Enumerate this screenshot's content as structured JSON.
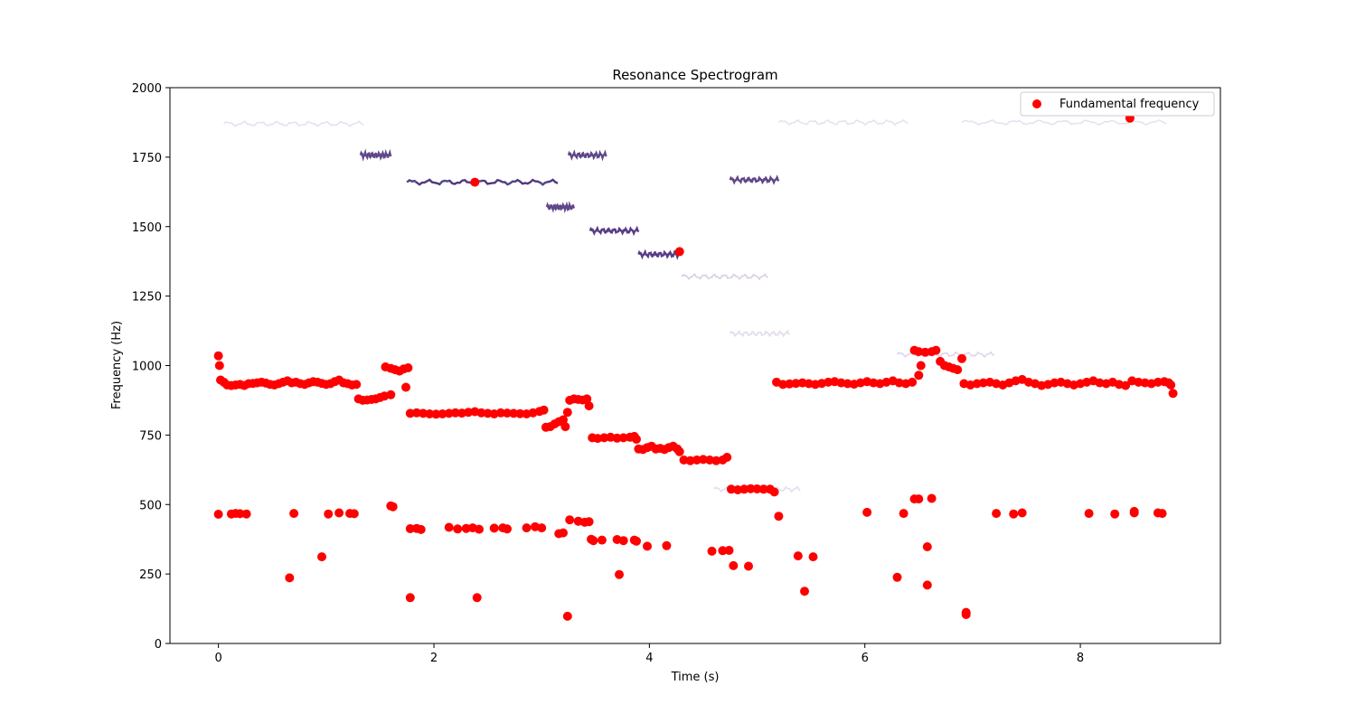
{
  "chart_data": {
    "type": "scatter",
    "title": "Resonance Spectrogram",
    "xlabel": "Time (s)",
    "ylabel": "Frequency (Hz)",
    "xlim": [
      -0.45,
      9.3
    ],
    "ylim": [
      0,
      2000
    ],
    "xticks": [
      0,
      2,
      4,
      6,
      8
    ],
    "yticks": [
      0,
      250,
      500,
      750,
      1000,
      1250,
      1500,
      1750,
      2000
    ],
    "grid": false,
    "legend": {
      "position": "top-right",
      "entries": [
        "Fundamental frequency"
      ]
    },
    "colors": {
      "points": "#ff0000",
      "spectrogram_dark": "#4b2f7a",
      "spectrogram_light": "#c9b8dd",
      "spectrogram_teal": "#2a8a8c"
    },
    "spectrogram_bands": [
      {
        "t0": 0.05,
        "t1": 1.35,
        "f": 1870,
        "intensity": 0.25
      },
      {
        "t0": 1.32,
        "t1": 1.6,
        "f": 1757,
        "intensity": 0.85
      },
      {
        "t0": 1.75,
        "t1": 3.15,
        "f": 1660,
        "intensity": 0.95
      },
      {
        "t0": 3.05,
        "t1": 3.3,
        "f": 1570,
        "intensity": 0.85
      },
      {
        "t0": 3.25,
        "t1": 3.6,
        "f": 1757,
        "intensity": 0.85
      },
      {
        "t0": 3.45,
        "t1": 3.9,
        "f": 1485,
        "intensity": 0.9
      },
      {
        "t0": 3.9,
        "t1": 4.3,
        "f": 1400,
        "intensity": 0.9
      },
      {
        "t0": 4.3,
        "t1": 5.1,
        "f": 1320,
        "intensity": 0.6
      },
      {
        "t0": 4.75,
        "t1": 5.2,
        "f": 1668,
        "intensity": 0.85
      },
      {
        "t0": 4.75,
        "t1": 5.3,
        "f": 1115,
        "intensity": 0.35
      },
      {
        "t0": 5.2,
        "t1": 6.4,
        "f": 1875,
        "intensity": 0.25
      },
      {
        "t0": 6.9,
        "t1": 8.8,
        "f": 1875,
        "intensity": 0.25
      },
      {
        "t0": 0.05,
        "t1": 1.3,
        "f": 935,
        "intensity": 0.3
      },
      {
        "t0": 6.3,
        "t1": 7.2,
        "f": 1040,
        "intensity": 0.45
      },
      {
        "t0": 4.6,
        "t1": 5.4,
        "f": 555,
        "intensity": 0.3
      }
    ],
    "series": [
      {
        "name": "Fundamental frequency",
        "points": [
          [
            0.0,
            1035
          ],
          [
            0.01,
            1000
          ],
          [
            0.02,
            948
          ],
          [
            0.05,
            940
          ],
          [
            0.08,
            930
          ],
          [
            0.12,
            928
          ],
          [
            0.16,
            930
          ],
          [
            0.2,
            932
          ],
          [
            0.24,
            928
          ],
          [
            0.28,
            935
          ],
          [
            0.32,
            936
          ],
          [
            0.36,
            938
          ],
          [
            0.4,
            940
          ],
          [
            0.44,
            937
          ],
          [
            0.48,
            932
          ],
          [
            0.52,
            930
          ],
          [
            0.56,
            935
          ],
          [
            0.6,
            940
          ],
          [
            0.64,
            945
          ],
          [
            0.68,
            938
          ],
          [
            0.72,
            940
          ],
          [
            0.76,
            935
          ],
          [
            0.8,
            932
          ],
          [
            0.84,
            938
          ],
          [
            0.88,
            942
          ],
          [
            0.92,
            940
          ],
          [
            0.96,
            936
          ],
          [
            1.0,
            932
          ],
          [
            1.04,
            935
          ],
          [
            1.08,
            942
          ],
          [
            1.12,
            948
          ],
          [
            1.16,
            938
          ],
          [
            1.2,
            935
          ],
          [
            1.24,
            930
          ],
          [
            1.28,
            932
          ],
          [
            1.3,
            880
          ],
          [
            1.34,
            875
          ],
          [
            1.38,
            876
          ],
          [
            1.42,
            878
          ],
          [
            1.46,
            880
          ],
          [
            1.5,
            885
          ],
          [
            1.54,
            890
          ],
          [
            1.6,
            895
          ],
          [
            1.55,
            995
          ],
          [
            1.6,
            990
          ],
          [
            1.64,
            985
          ],
          [
            1.68,
            980
          ],
          [
            1.72,
            988
          ],
          [
            1.76,
            992
          ],
          [
            1.74,
            922
          ],
          [
            1.78,
            828
          ],
          [
            1.84,
            830
          ],
          [
            1.9,
            828
          ],
          [
            1.96,
            826
          ],
          [
            2.02,
            825
          ],
          [
            2.08,
            826
          ],
          [
            2.14,
            828
          ],
          [
            2.2,
            830
          ],
          [
            2.26,
            829
          ],
          [
            2.32,
            832
          ],
          [
            2.38,
            834
          ],
          [
            2.44,
            830
          ],
          [
            2.5,
            828
          ],
          [
            2.56,
            826
          ],
          [
            2.62,
            830
          ],
          [
            2.68,
            829
          ],
          [
            2.74,
            828
          ],
          [
            2.8,
            827
          ],
          [
            2.86,
            826
          ],
          [
            2.92,
            830
          ],
          [
            2.98,
            835
          ],
          [
            3.02,
            840
          ],
          [
            3.04,
            778
          ],
          [
            3.08,
            780
          ],
          [
            3.12,
            790
          ],
          [
            3.16,
            798
          ],
          [
            3.2,
            805
          ],
          [
            3.22,
            780
          ],
          [
            3.24,
            832
          ],
          [
            3.26,
            875
          ],
          [
            3.3,
            880
          ],
          [
            3.34,
            878
          ],
          [
            3.38,
            876
          ],
          [
            3.42,
            880
          ],
          [
            3.44,
            855
          ],
          [
            3.47,
            740
          ],
          [
            3.52,
            738
          ],
          [
            3.58,
            740
          ],
          [
            3.64,
            742
          ],
          [
            3.7,
            739
          ],
          [
            3.76,
            740
          ],
          [
            3.82,
            742
          ],
          [
            3.86,
            745
          ],
          [
            3.88,
            735
          ],
          [
            3.9,
            700
          ],
          [
            3.94,
            698
          ],
          [
            3.98,
            705
          ],
          [
            4.02,
            710
          ],
          [
            4.06,
            700
          ],
          [
            4.1,
            702
          ],
          [
            4.14,
            698
          ],
          [
            4.18,
            705
          ],
          [
            4.22,
            710
          ],
          [
            4.26,
            700
          ],
          [
            4.28,
            690
          ],
          [
            4.32,
            660
          ],
          [
            4.38,
            658
          ],
          [
            4.44,
            660
          ],
          [
            4.5,
            662
          ],
          [
            4.56,
            660
          ],
          [
            4.62,
            658
          ],
          [
            4.68,
            660
          ],
          [
            4.72,
            670
          ],
          [
            4.76,
            555
          ],
          [
            4.82,
            553
          ],
          [
            4.88,
            555
          ],
          [
            4.94,
            557
          ],
          [
            5.0,
            556
          ],
          [
            5.06,
            555
          ],
          [
            5.12,
            555
          ],
          [
            5.16,
            545
          ],
          [
            5.18,
            940
          ],
          [
            5.24,
            932
          ],
          [
            5.3,
            934
          ],
          [
            5.36,
            936
          ],
          [
            5.42,
            938
          ],
          [
            5.48,
            935
          ],
          [
            5.54,
            932
          ],
          [
            5.6,
            936
          ],
          [
            5.66,
            940
          ],
          [
            5.72,
            942
          ],
          [
            5.78,
            938
          ],
          [
            5.84,
            935
          ],
          [
            5.9,
            933
          ],
          [
            5.96,
            938
          ],
          [
            6.02,
            942
          ],
          [
            6.08,
            938
          ],
          [
            6.14,
            935
          ],
          [
            6.2,
            940
          ],
          [
            6.26,
            945
          ],
          [
            6.32,
            938
          ],
          [
            6.38,
            935
          ],
          [
            6.44,
            940
          ],
          [
            6.46,
            1055
          ],
          [
            6.5,
            1050
          ],
          [
            6.56,
            1048
          ],
          [
            6.62,
            1050
          ],
          [
            6.66,
            1055
          ],
          [
            6.52,
            1000
          ],
          [
            6.5,
            965
          ],
          [
            6.7,
            1015
          ],
          [
            6.74,
            1000
          ],
          [
            6.78,
            995
          ],
          [
            6.82,
            990
          ],
          [
            6.86,
            985
          ],
          [
            6.9,
            1025
          ],
          [
            6.92,
            935
          ],
          [
            6.98,
            930
          ],
          [
            7.04,
            935
          ],
          [
            7.1,
            938
          ],
          [
            7.16,
            940
          ],
          [
            7.22,
            935
          ],
          [
            7.28,
            930
          ],
          [
            7.34,
            938
          ],
          [
            7.4,
            945
          ],
          [
            7.46,
            950
          ],
          [
            7.52,
            940
          ],
          [
            7.58,
            935
          ],
          [
            7.64,
            928
          ],
          [
            7.7,
            932
          ],
          [
            7.76,
            938
          ],
          [
            7.82,
            940
          ],
          [
            7.88,
            935
          ],
          [
            7.94,
            930
          ],
          [
            8.0,
            935
          ],
          [
            8.06,
            940
          ],
          [
            8.12,
            945
          ],
          [
            8.18,
            938
          ],
          [
            8.24,
            935
          ],
          [
            8.3,
            940
          ],
          [
            8.36,
            932
          ],
          [
            8.42,
            928
          ],
          [
            8.48,
            945
          ],
          [
            8.54,
            940
          ],
          [
            8.6,
            938
          ],
          [
            8.66,
            935
          ],
          [
            8.72,
            940
          ],
          [
            8.78,
            942
          ],
          [
            8.82,
            938
          ],
          [
            8.84,
            930
          ],
          [
            8.86,
            900
          ],
          [
            0.0,
            465
          ],
          [
            0.12,
            466
          ],
          [
            0.16,
            468
          ],
          [
            0.2,
            467
          ],
          [
            0.26,
            466
          ],
          [
            0.7,
            468
          ],
          [
            1.02,
            466
          ],
          [
            1.12,
            470
          ],
          [
            1.22,
            468
          ],
          [
            1.26,
            467
          ],
          [
            1.6,
            495
          ],
          [
            1.62,
            492
          ],
          [
            1.78,
            413
          ],
          [
            1.84,
            414
          ],
          [
            1.88,
            410
          ],
          [
            2.14,
            418
          ],
          [
            2.22,
            412
          ],
          [
            2.3,
            414
          ],
          [
            2.36,
            416
          ],
          [
            2.42,
            411
          ],
          [
            2.56,
            415
          ],
          [
            2.64,
            416
          ],
          [
            2.68,
            412
          ],
          [
            2.86,
            416
          ],
          [
            2.94,
            420
          ],
          [
            3.0,
            416
          ],
          [
            3.16,
            395
          ],
          [
            3.2,
            398
          ],
          [
            3.26,
            445
          ],
          [
            3.34,
            440
          ],
          [
            3.4,
            436
          ],
          [
            3.44,
            438
          ],
          [
            3.46,
            375
          ],
          [
            3.48,
            370
          ],
          [
            3.56,
            372
          ],
          [
            3.7,
            374
          ],
          [
            3.76,
            370
          ],
          [
            3.86,
            372
          ],
          [
            3.88,
            368
          ],
          [
            3.98,
            350
          ],
          [
            4.16,
            352
          ],
          [
            4.58,
            332
          ],
          [
            4.68,
            334
          ],
          [
            4.74,
            335
          ],
          [
            4.92,
            278
          ],
          [
            4.78,
            280
          ],
          [
            5.2,
            458
          ],
          [
            6.02,
            472
          ],
          [
            6.36,
            468
          ],
          [
            6.46,
            520
          ],
          [
            6.5,
            520
          ],
          [
            6.62,
            522
          ],
          [
            6.58,
            348
          ],
          [
            7.22,
            468
          ],
          [
            7.38,
            466
          ],
          [
            7.46,
            470
          ],
          [
            8.08,
            468
          ],
          [
            8.32,
            466
          ],
          [
            8.5,
            470
          ],
          [
            8.5,
            475
          ],
          [
            8.72,
            470
          ],
          [
            8.76,
            468
          ],
          [
            0.66,
            236
          ],
          [
            0.96,
            312
          ],
          [
            1.78,
            165
          ],
          [
            2.4,
            165
          ],
          [
            3.24,
            98
          ],
          [
            3.72,
            248
          ],
          [
            5.38,
            315
          ],
          [
            5.44,
            188
          ],
          [
            5.52,
            312
          ],
          [
            6.3,
            238
          ],
          [
            6.58,
            210
          ],
          [
            6.94,
            112
          ],
          [
            6.94,
            104
          ],
          [
            2.38,
            1660
          ],
          [
            4.28,
            1410
          ],
          [
            8.46,
            1890
          ]
        ]
      }
    ]
  }
}
